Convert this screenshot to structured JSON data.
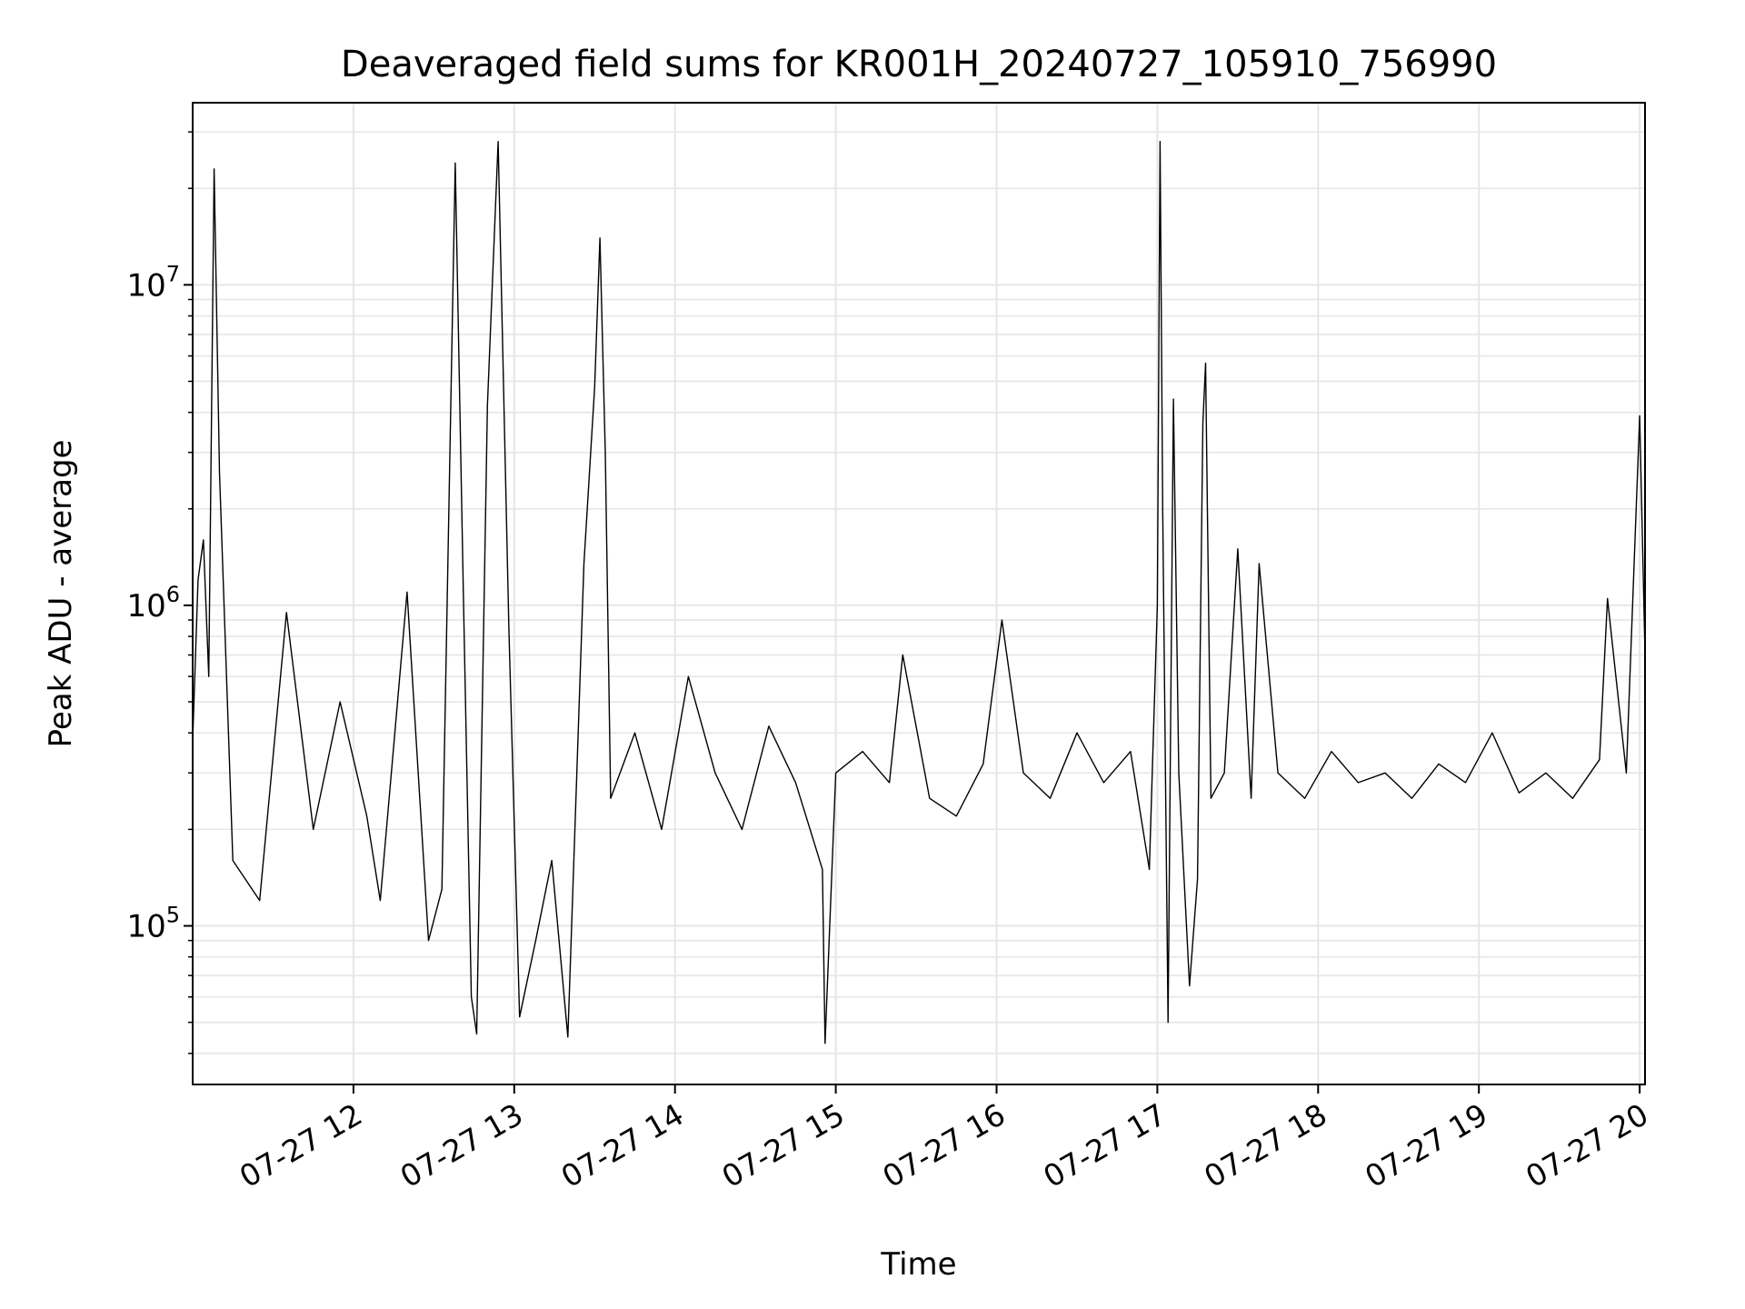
{
  "chart_data": {
    "type": "line",
    "title": "Deaveraged field sums for KR001H_20240727_105910_756990",
    "xlabel": "Time",
    "ylabel": "Peak ADU - average",
    "yscale": "log",
    "grid": true,
    "legend": "none",
    "line_color": "#000000",
    "grid_color": "#e6e6e6",
    "xlim": [
      "2024-07-27 11:00",
      "2024-07-27 20:02"
    ],
    "ylim": [
      32000,
      37000000
    ],
    "x_ticks": [
      {
        "time": "2024-07-27 12:00",
        "label": "07-27 12"
      },
      {
        "time": "2024-07-27 13:00",
        "label": "07-27 13"
      },
      {
        "time": "2024-07-27 14:00",
        "label": "07-27 14"
      },
      {
        "time": "2024-07-27 15:00",
        "label": "07-27 15"
      },
      {
        "time": "2024-07-27 16:00",
        "label": "07-27 16"
      },
      {
        "time": "2024-07-27 17:00",
        "label": "07-27 17"
      },
      {
        "time": "2024-07-27 18:00",
        "label": "07-27 18"
      },
      {
        "time": "2024-07-27 19:00",
        "label": "07-27 19"
      },
      {
        "time": "2024-07-27 20:00",
        "label": "07-27 20"
      }
    ],
    "y_ticks": [
      {
        "value": 100000,
        "base": "10",
        "exp": "5"
      },
      {
        "value": 1000000,
        "base": "10",
        "exp": "6"
      },
      {
        "value": 10000000,
        "base": "10",
        "exp": "7"
      }
    ],
    "series": [
      {
        "points": [
          [
            "2024-07-27 11:00",
            380000
          ],
          [
            "2024-07-27 11:02",
            1200000
          ],
          [
            "2024-07-27 11:04",
            1600000
          ],
          [
            "2024-07-27 11:06",
            600000
          ],
          [
            "2024-07-27 11:08",
            23000000
          ],
          [
            "2024-07-27 11:10",
            2600000
          ],
          [
            "2024-07-27 11:15",
            160000
          ],
          [
            "2024-07-27 11:25",
            120000
          ],
          [
            "2024-07-27 11:35",
            950000
          ],
          [
            "2024-07-27 11:45",
            200000
          ],
          [
            "2024-07-27 11:55",
            500000
          ],
          [
            "2024-07-27 12:05",
            220000
          ],
          [
            "2024-07-27 12:10",
            120000
          ],
          [
            "2024-07-27 12:20",
            1100000
          ],
          [
            "2024-07-27 12:28",
            90000
          ],
          [
            "2024-07-27 12:33",
            130000
          ],
          [
            "2024-07-27 12:38",
            24000000
          ],
          [
            "2024-07-27 12:41",
            1100000
          ],
          [
            "2024-07-27 12:44",
            60000
          ],
          [
            "2024-07-27 12:46",
            46000
          ],
          [
            "2024-07-27 12:50",
            4200000
          ],
          [
            "2024-07-27 12:54",
            28000000
          ],
          [
            "2024-07-27 12:58",
            850000
          ],
          [
            "2024-07-27 13:02",
            52000
          ],
          [
            "2024-07-27 13:08",
            90000
          ],
          [
            "2024-07-27 13:14",
            160000
          ],
          [
            "2024-07-27 13:20",
            45000
          ],
          [
            "2024-07-27 13:26",
            1350000
          ],
          [
            "2024-07-27 13:30",
            4800000
          ],
          [
            "2024-07-27 13:32",
            14000000
          ],
          [
            "2024-07-27 13:34",
            3000000
          ],
          [
            "2024-07-27 13:36",
            250000
          ],
          [
            "2024-07-27 13:45",
            400000
          ],
          [
            "2024-07-27 13:55",
            200000
          ],
          [
            "2024-07-27 14:05",
            600000
          ],
          [
            "2024-07-27 14:15",
            300000
          ],
          [
            "2024-07-27 14:25",
            200000
          ],
          [
            "2024-07-27 14:35",
            420000
          ],
          [
            "2024-07-27 14:45",
            280000
          ],
          [
            "2024-07-27 14:55",
            150000
          ],
          [
            "2024-07-27 14:56",
            43000
          ],
          [
            "2024-07-27 15:00",
            300000
          ],
          [
            "2024-07-27 15:10",
            350000
          ],
          [
            "2024-07-27 15:20",
            280000
          ],
          [
            "2024-07-27 15:25",
            700000
          ],
          [
            "2024-07-27 15:35",
            250000
          ],
          [
            "2024-07-27 15:45",
            220000
          ],
          [
            "2024-07-27 15:55",
            320000
          ],
          [
            "2024-07-27 16:02",
            900000
          ],
          [
            "2024-07-27 16:10",
            300000
          ],
          [
            "2024-07-27 16:20",
            250000
          ],
          [
            "2024-07-27 16:30",
            400000
          ],
          [
            "2024-07-27 16:40",
            280000
          ],
          [
            "2024-07-27 16:50",
            350000
          ],
          [
            "2024-07-27 16:57",
            150000
          ],
          [
            "2024-07-27 17:00",
            1000000
          ],
          [
            "2024-07-27 17:01",
            28000000
          ],
          [
            "2024-07-27 17:02",
            2000000
          ],
          [
            "2024-07-27 17:04",
            50000
          ],
          [
            "2024-07-27 17:06",
            4400000
          ],
          [
            "2024-07-27 17:08",
            300000
          ],
          [
            "2024-07-27 17:12",
            65000
          ],
          [
            "2024-07-27 17:15",
            140000
          ],
          [
            "2024-07-27 17:17",
            3700000
          ],
          [
            "2024-07-27 17:18",
            5700000
          ],
          [
            "2024-07-27 17:20",
            250000
          ],
          [
            "2024-07-27 17:25",
            300000
          ],
          [
            "2024-07-27 17:30",
            1500000
          ],
          [
            "2024-07-27 17:35",
            250000
          ],
          [
            "2024-07-27 17:38",
            1350000
          ],
          [
            "2024-07-27 17:45",
            300000
          ],
          [
            "2024-07-27 17:55",
            250000
          ],
          [
            "2024-07-27 18:05",
            350000
          ],
          [
            "2024-07-27 18:15",
            280000
          ],
          [
            "2024-07-27 18:25",
            300000
          ],
          [
            "2024-07-27 18:35",
            250000
          ],
          [
            "2024-07-27 18:45",
            320000
          ],
          [
            "2024-07-27 18:55",
            280000
          ],
          [
            "2024-07-27 19:05",
            400000
          ],
          [
            "2024-07-27 19:15",
            260000
          ],
          [
            "2024-07-27 19:25",
            300000
          ],
          [
            "2024-07-27 19:35",
            250000
          ],
          [
            "2024-07-27 19:45",
            330000
          ],
          [
            "2024-07-27 19:48",
            1050000
          ],
          [
            "2024-07-27 19:55",
            300000
          ],
          [
            "2024-07-27 20:00",
            3900000
          ],
          [
            "2024-07-27 20:02",
            700000
          ]
        ]
      }
    ]
  }
}
